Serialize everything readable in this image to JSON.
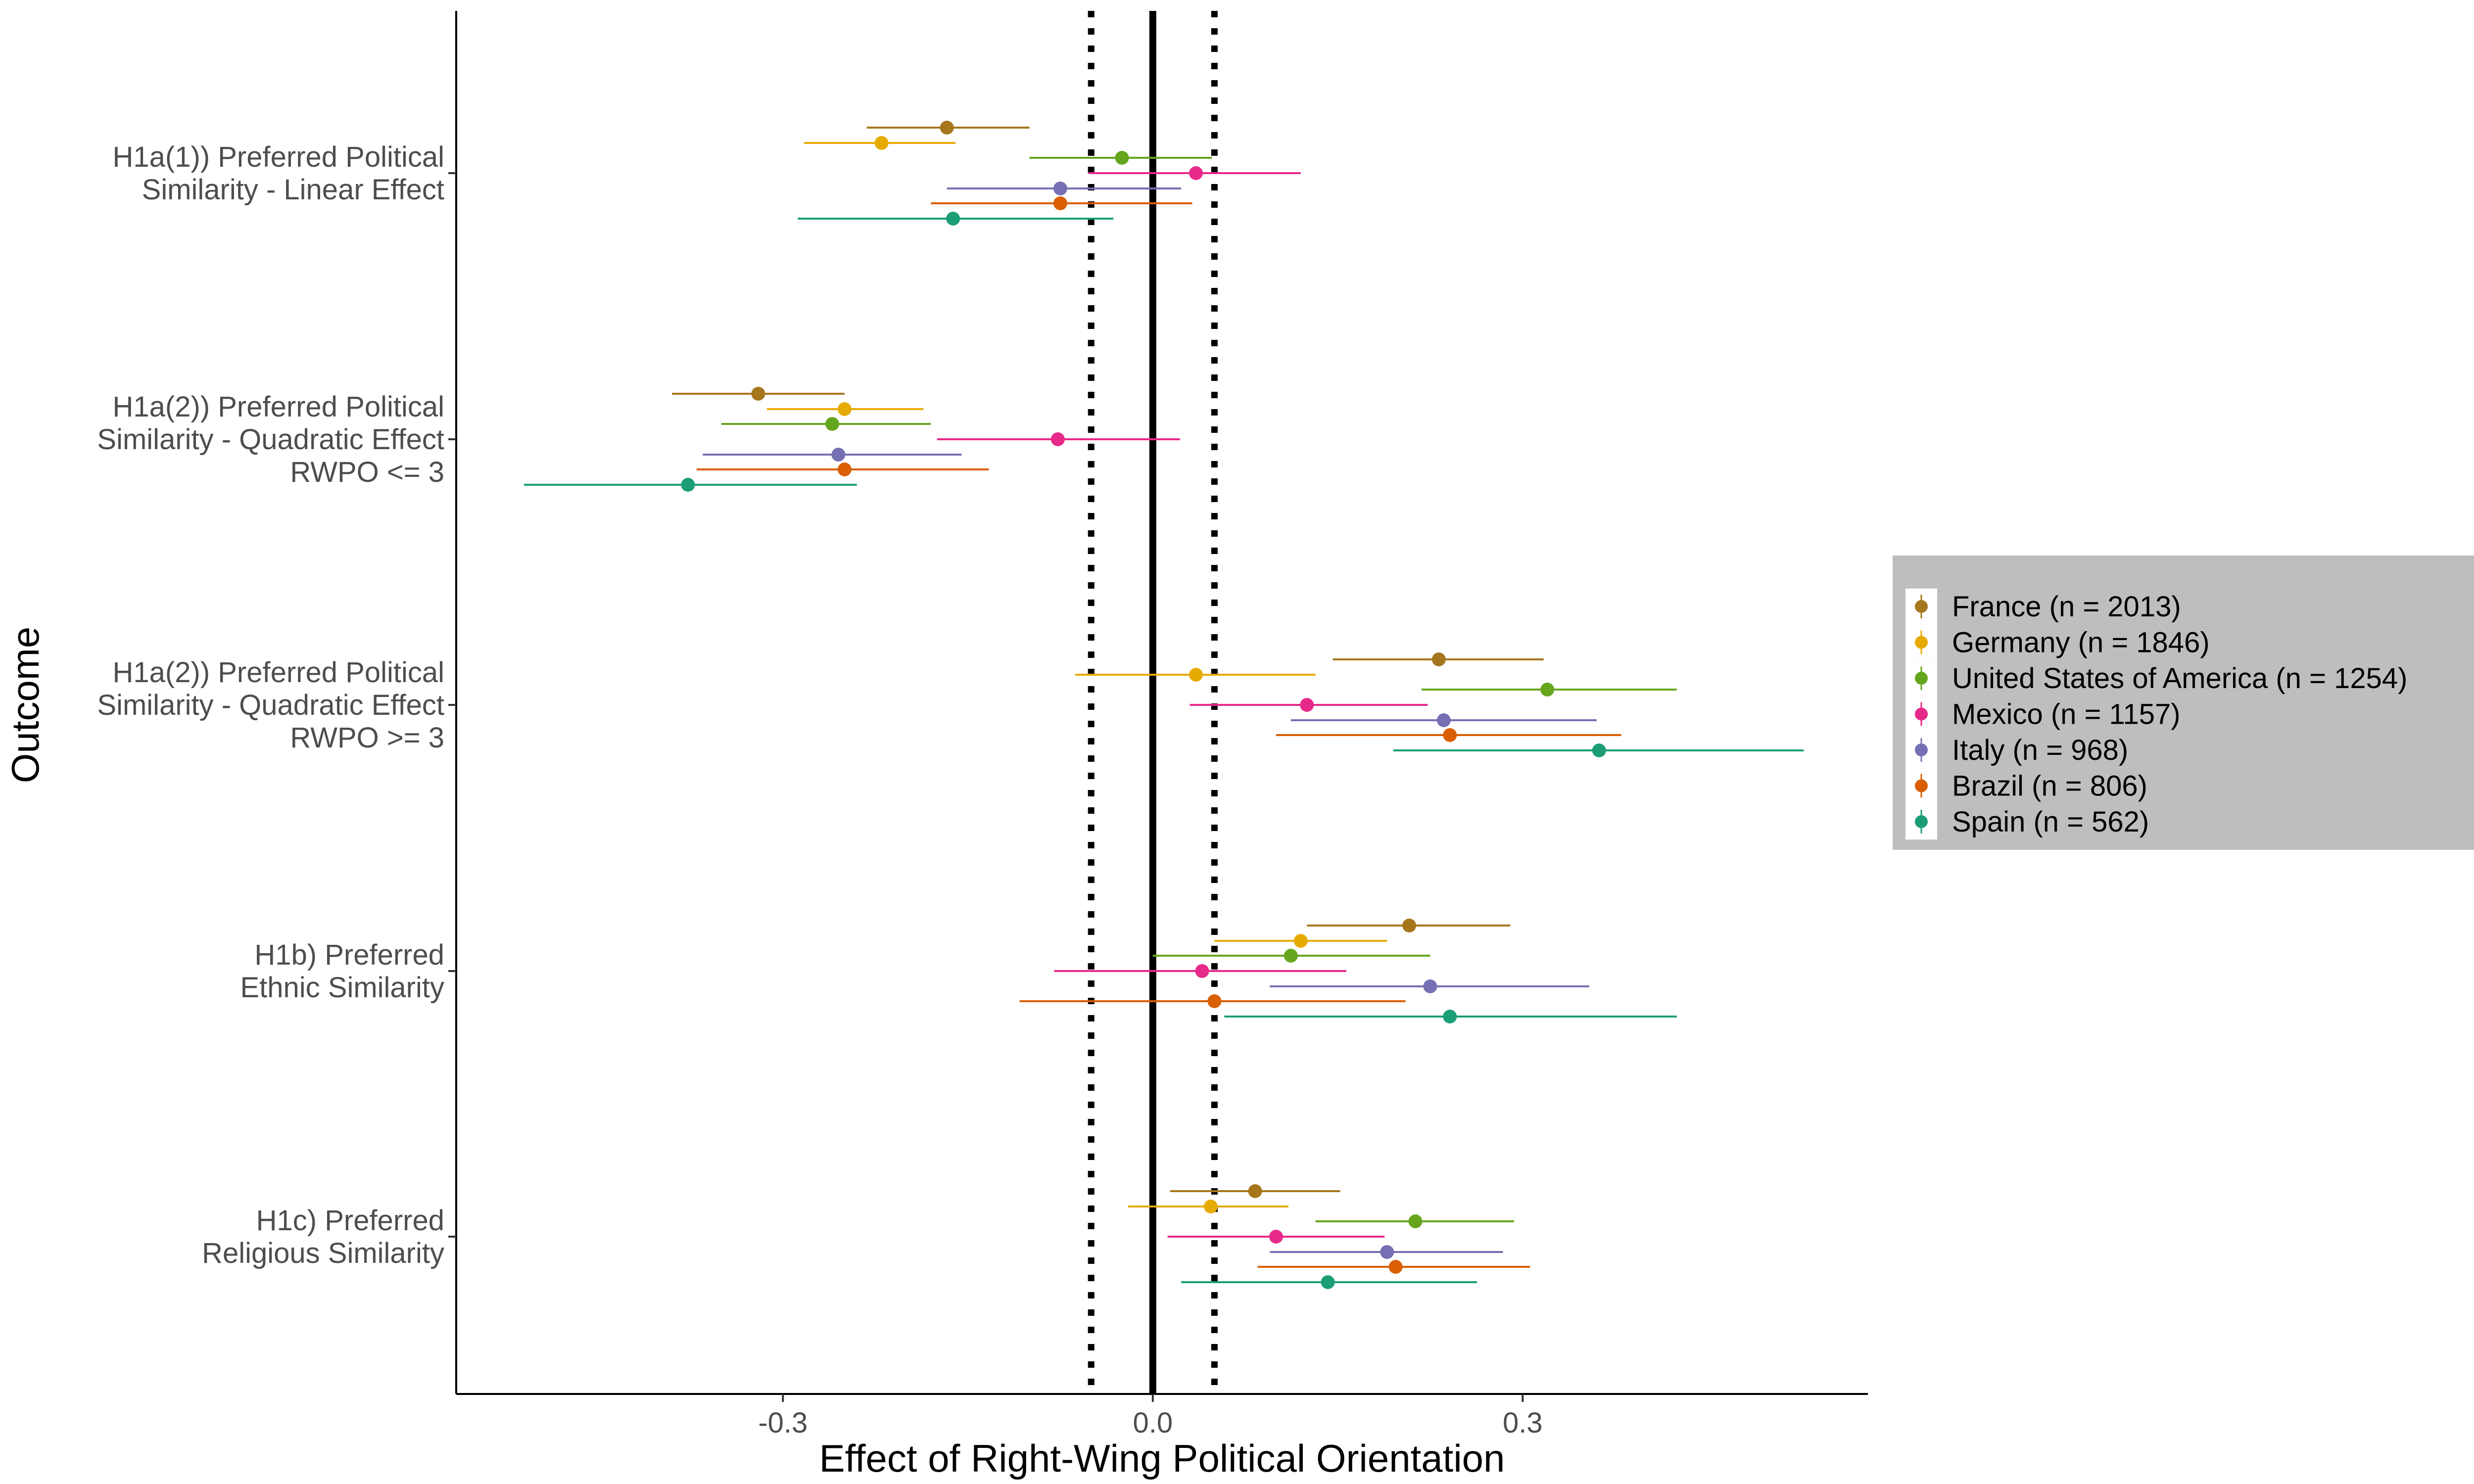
{
  "chart_data": {
    "type": "forest",
    "xlabel": "Effect of Right-Wing Political Orientation",
    "ylabel": "Outcome",
    "xlim": [
      -0.565,
      0.58
    ],
    "xticks": [
      -0.3,
      0.0,
      0.3
    ],
    "xtick_labels": [
      "-0.3",
      "0.0",
      "0.3"
    ],
    "reference_lines": {
      "solid": 0.0,
      "dotted": [
        -0.05,
        0.05
      ]
    },
    "grid": false,
    "legend_position": "right",
    "categories": [
      [
        "H1a(1)) Preferred Political",
        "Similarity - Linear Effect"
      ],
      [
        "H1a(2)) Preferred Political",
        "Similarity - Quadratic Effect",
        "RWPO <= 3"
      ],
      [
        "H1a(2)) Preferred Political",
        "Similarity - Quadratic Effect",
        "RWPO >= 3"
      ],
      [
        "H1b) Preferred",
        "Ethnic Similarity"
      ],
      [
        "H1c) Preferred",
        "Religious Similarity"
      ]
    ],
    "series": [
      {
        "name": "France (n = 2013)",
        "color": "#a6761d",
        "estimates": [
          -0.167,
          -0.32,
          0.232,
          0.208,
          0.083
        ],
        "lower": [
          -0.232,
          -0.39,
          0.146,
          0.125,
          0.014
        ],
        "upper": [
          -0.1,
          -0.25,
          0.317,
          0.29,
          0.152
        ]
      },
      {
        "name": "Germany (n = 1846)",
        "color": "#e6ab02",
        "estimates": [
          -0.22,
          -0.25,
          0.035,
          0.12,
          0.047
        ],
        "lower": [
          -0.283,
          -0.313,
          -0.063,
          0.05,
          -0.02
        ],
        "upper": [
          -0.16,
          -0.186,
          0.132,
          0.19,
          0.11
        ]
      },
      {
        "name": "United States of America (n = 1254)",
        "color": "#66a61e",
        "estimates": [
          -0.025,
          -0.26,
          0.32,
          0.112,
          0.213
        ],
        "lower": [
          -0.1,
          -0.35,
          0.218,
          0.0,
          0.132
        ],
        "upper": [
          0.048,
          -0.18,
          0.425,
          0.225,
          0.293
        ]
      },
      {
        "name": "Mexico (n = 1157)",
        "color": "#e7298a",
        "estimates": [
          0.035,
          -0.077,
          0.125,
          0.04,
          0.1
        ],
        "lower": [
          -0.052,
          -0.175,
          0.03,
          -0.08,
          0.012
        ],
        "upper": [
          0.12,
          0.022,
          0.223,
          0.157,
          0.188
        ]
      },
      {
        "name": "Italy (n = 968)",
        "color": "#7570b3",
        "estimates": [
          -0.075,
          -0.255,
          0.236,
          0.225,
          0.19
        ],
        "lower": [
          -0.167,
          -0.365,
          0.112,
          0.095,
          0.095
        ],
        "upper": [
          0.023,
          -0.155,
          0.36,
          0.354,
          0.284
        ]
      },
      {
        "name": "Brazil (n = 806)",
        "color": "#d95f02",
        "estimates": [
          -0.075,
          -0.25,
          0.241,
          0.05,
          0.197
        ],
        "lower": [
          -0.18,
          -0.37,
          0.1,
          -0.108,
          0.085
        ],
        "upper": [
          0.032,
          -0.133,
          0.38,
          0.205,
          0.306
        ]
      },
      {
        "name": "Spain (n = 562)",
        "color": "#1b9e77",
        "estimates": [
          -0.162,
          -0.377,
          0.362,
          0.241,
          0.142
        ],
        "lower": [
          -0.288,
          -0.51,
          0.195,
          0.058,
          0.023
        ],
        "upper": [
          -0.032,
          -0.24,
          0.528,
          0.425,
          0.263
        ]
      }
    ]
  }
}
